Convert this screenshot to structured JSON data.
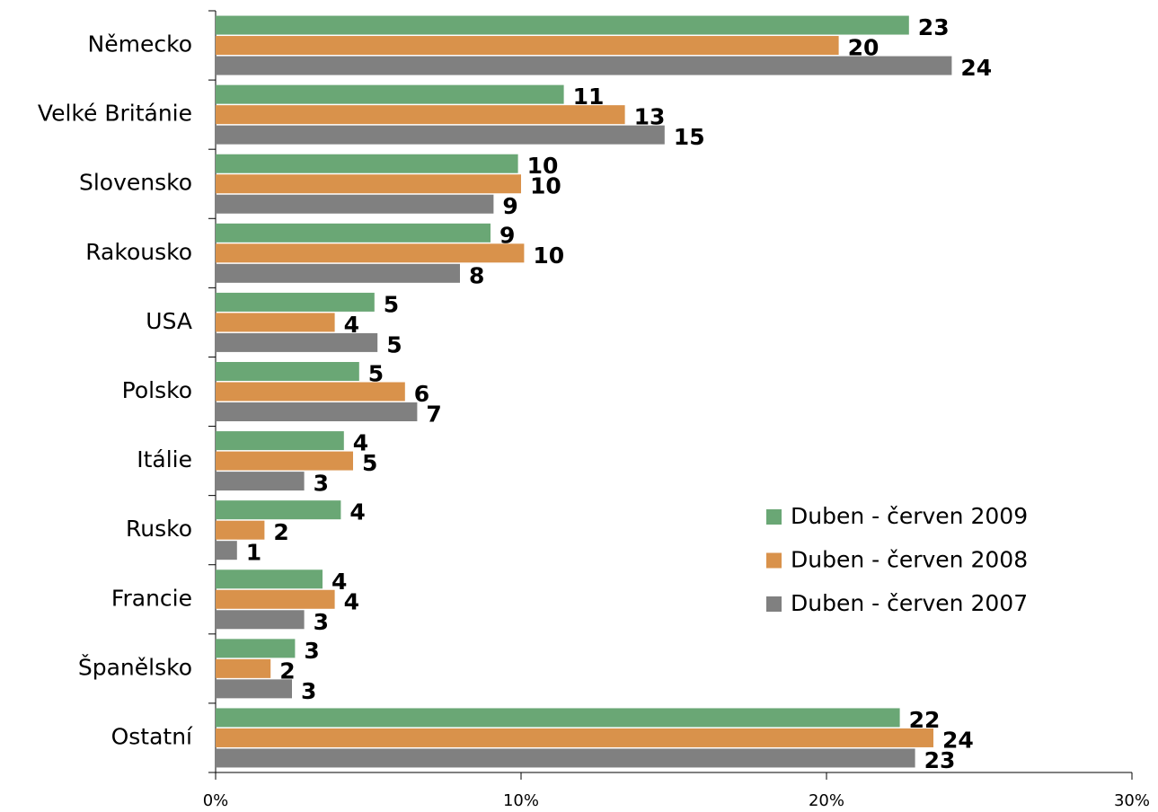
{
  "chart_data": {
    "type": "hbar",
    "categories": [
      "Německo",
      "Velké Británie",
      "Slovensko",
      "Rakousko",
      "USA",
      "Polsko",
      "Itálie",
      "Rusko",
      "Francie",
      "Španělsko",
      "Ostatní"
    ],
    "series": [
      {
        "name": "Duben - červen 2009",
        "color": "#6aa775",
        "values": [
          22.7,
          11.4,
          9.9,
          9.0,
          5.2,
          4.7,
          4.2,
          4.1,
          3.5,
          2.6,
          22.4
        ],
        "value_labels": [
          "23",
          "11",
          "10",
          "9",
          "5",
          "5",
          "4",
          "4",
          "4",
          "3",
          "22"
        ]
      },
      {
        "name": "Duben - červen 2008",
        "color": "#d9924b",
        "values": [
          20.4,
          13.4,
          10.0,
          10.1,
          3.9,
          6.2,
          4.5,
          1.6,
          3.9,
          1.8,
          23.5
        ],
        "value_labels": [
          "20",
          "13",
          "10",
          "10",
          "4",
          "6",
          "5",
          "2",
          "4",
          "2",
          "24"
        ]
      },
      {
        "name": "Duben - červen 2007",
        "color": "#808080",
        "values": [
          24.1,
          14.7,
          9.1,
          8.0,
          5.3,
          6.6,
          2.9,
          0.7,
          2.9,
          2.5,
          22.9
        ],
        "value_labels": [
          "24",
          "15",
          "9",
          "8",
          "5",
          "7",
          "3",
          "1",
          "3",
          "3",
          "23"
        ]
      }
    ],
    "xlim": [
      0,
      30
    ],
    "xticks": [
      {
        "value": 0,
        "label": "0%"
      },
      {
        "value": 10,
        "label": "10%"
      },
      {
        "value": 20,
        "label": "20%"
      },
      {
        "value": 30,
        "label": "30%"
      }
    ],
    "legend": "right"
  }
}
